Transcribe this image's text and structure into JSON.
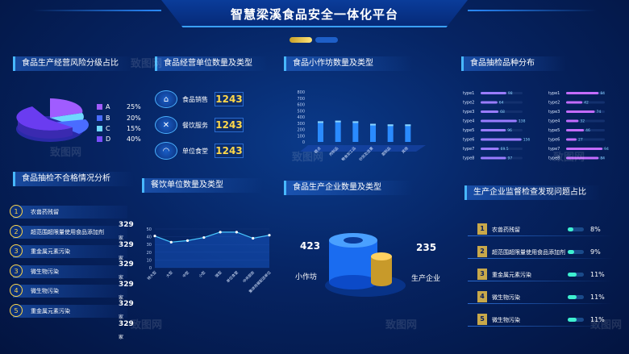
{
  "header": {
    "title": "智慧梁溪食品安全一体化平台"
  },
  "risk": {
    "title": "食品生产经营风险分级占比",
    "legend": [
      {
        "label": "A",
        "value": "25%",
        "color": "#a05cff"
      },
      {
        "label": "B",
        "value": "20%",
        "color": "#4a6cff"
      },
      {
        "label": "C",
        "value": "15%",
        "color": "#6fd7ff"
      },
      {
        "label": "D",
        "value": "40%",
        "color": "#7a4dff"
      }
    ]
  },
  "units": {
    "title": "食品经营单位数量及类型",
    "items": [
      {
        "label": "食品销售",
        "value": "1243"
      },
      {
        "label": "餐饮服务",
        "value": "1243"
      },
      {
        "label": "单位食堂",
        "value": "1243"
      }
    ]
  },
  "workshop": {
    "title": "食品小作坊数量及类型"
  },
  "sampling": {
    "title": "食品抽检品种分布"
  },
  "unqualified": {
    "title": "食品抽检不合格情况分析",
    "unit": "家",
    "items": [
      {
        "num": "1",
        "label": "农兽药残留",
        "value": "329"
      },
      {
        "num": "2",
        "label": "超范围超限量使用食品添加剂",
        "value": "329"
      },
      {
        "num": "3",
        "label": "重金属元素污染",
        "value": "329"
      },
      {
        "num": "3",
        "label": "微生物污染",
        "value": "329"
      },
      {
        "num": "4",
        "label": "微生物污染",
        "value": "329"
      },
      {
        "num": "5",
        "label": "重金属元素污染",
        "value": "329"
      }
    ]
  },
  "catering": {
    "title": "餐饮单位数量及类型"
  },
  "enterprise": {
    "title": "食品生产企业数量及类型",
    "left_value": "423",
    "left_label": "小作坊",
    "right_value": "235",
    "right_label": "生产企业"
  },
  "supervision": {
    "title": "生产企业监督检查发现问题占比",
    "items": [
      {
        "num": "1",
        "label": "农兽药残留",
        "value": "8%",
        "fraction": 0.35
      },
      {
        "num": "2",
        "label": "超范围超限量使用食品添加剂",
        "value": "9%",
        "fraction": 0.4
      },
      {
        "num": "3",
        "label": "重金属元素污染",
        "value": "11%",
        "fraction": 0.55
      },
      {
        "num": "4",
        "label": "微生物污染",
        "value": "11%",
        "fraction": 0.55
      },
      {
        "num": "5",
        "label": "微生物污染",
        "value": "11%",
        "fraction": 0.55
      }
    ]
  },
  "chart_data": [
    {
      "type": "bar",
      "name": "workshop",
      "yticks": [
        "0",
        "100",
        "200",
        "300",
        "400",
        "500",
        "600",
        "700",
        "800"
      ],
      "ylim": [
        0,
        800
      ],
      "categories": [
        "糕点",
        "肉制品",
        "粮食加工品",
        "炒货及坚果",
        "面制品",
        "其他"
      ],
      "values": [
        330,
        340,
        330,
        290,
        280,
        280
      ]
    },
    {
      "type": "bar",
      "name": "sampling-left",
      "orientation": "horizontal",
      "categories": [
        "type1",
        "type2",
        "type3",
        "type4",
        "type5",
        "type6",
        "type7",
        "type8"
      ],
      "values": [
        98,
        64,
        68,
        138,
        96,
        156,
        69.5,
        97
      ],
      "labels": [
        "98",
        "64",
        "68",
        "138",
        "96",
        "156",
        "69.5",
        "97"
      ],
      "xmax": 160
    },
    {
      "type": "bar",
      "name": "sampling-right",
      "orientation": "horizontal",
      "categories": [
        "type1",
        "type2",
        "type3",
        "type4",
        "type5",
        "type6",
        "type7",
        "type8"
      ],
      "values": [
        84,
        42,
        74,
        32,
        46,
        27,
        94,
        84
      ],
      "labels": [
        "84",
        "42",
        "74",
        "32",
        "46",
        "27",
        "94",
        "84"
      ],
      "xmax": 100
    },
    {
      "type": "line",
      "name": "catering",
      "yticks": [
        "0",
        "10",
        "20",
        "30",
        "40",
        "50"
      ],
      "ylim": [
        0,
        50
      ],
      "categories": [
        "特大型",
        "大型",
        "中型",
        "小型",
        "微型",
        "单位食堂",
        "中央厨房",
        "集体用餐配送单位"
      ],
      "values": [
        41,
        33,
        35,
        39,
        46,
        46,
        38,
        42
      ]
    }
  ],
  "watermark": "致图网"
}
